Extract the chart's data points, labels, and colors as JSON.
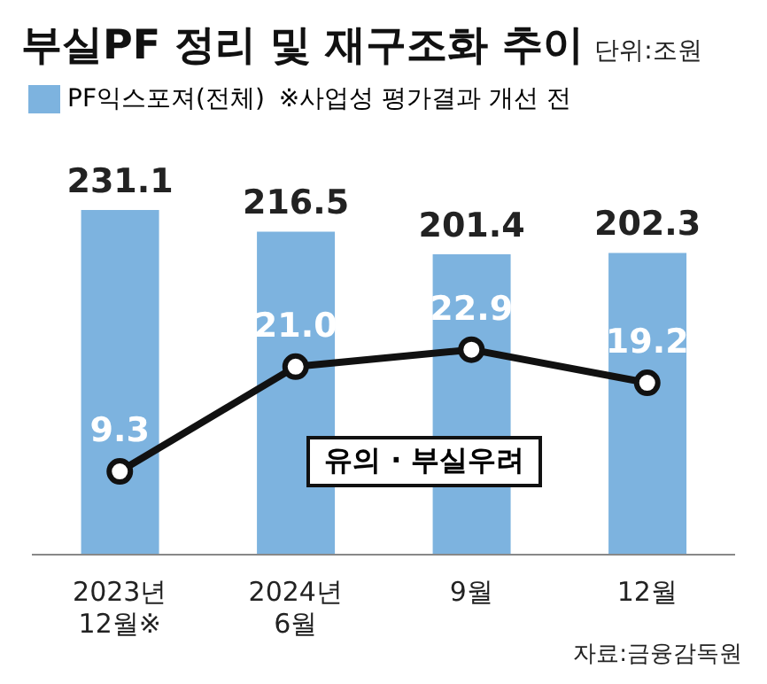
{
  "chart_data": {
    "type": "bar",
    "title": "부실PF 정리 및 재구조화 추이",
    "subtitle": "단위:조원",
    "categories": [
      "2023년\n12월※",
      "2024년\n6월",
      "9월",
      "12월"
    ],
    "series": [
      {
        "name": "PF익스포져(전체)",
        "color": "#7db3df",
        "values": [
          231.1,
          216.5,
          201.4,
          202.3
        ]
      },
      {
        "name": "유의 · 부실우려",
        "type": "line",
        "axis": "y2",
        "color": "#111111",
        "values": [
          9.3,
          21.0,
          22.9,
          19.2
        ],
        "value_labels": [
          "9.3",
          "21.0",
          "22.9",
          "19.2"
        ]
      }
    ],
    "tick_labels": "x",
    "data_labels": true,
    "legend": "top left",
    "marker": "circle",
    "line_style": "solid",
    "annotations": [
      "※사업성 평가결과 개선 전",
      "자료:금융감독원"
    ]
  }
}
